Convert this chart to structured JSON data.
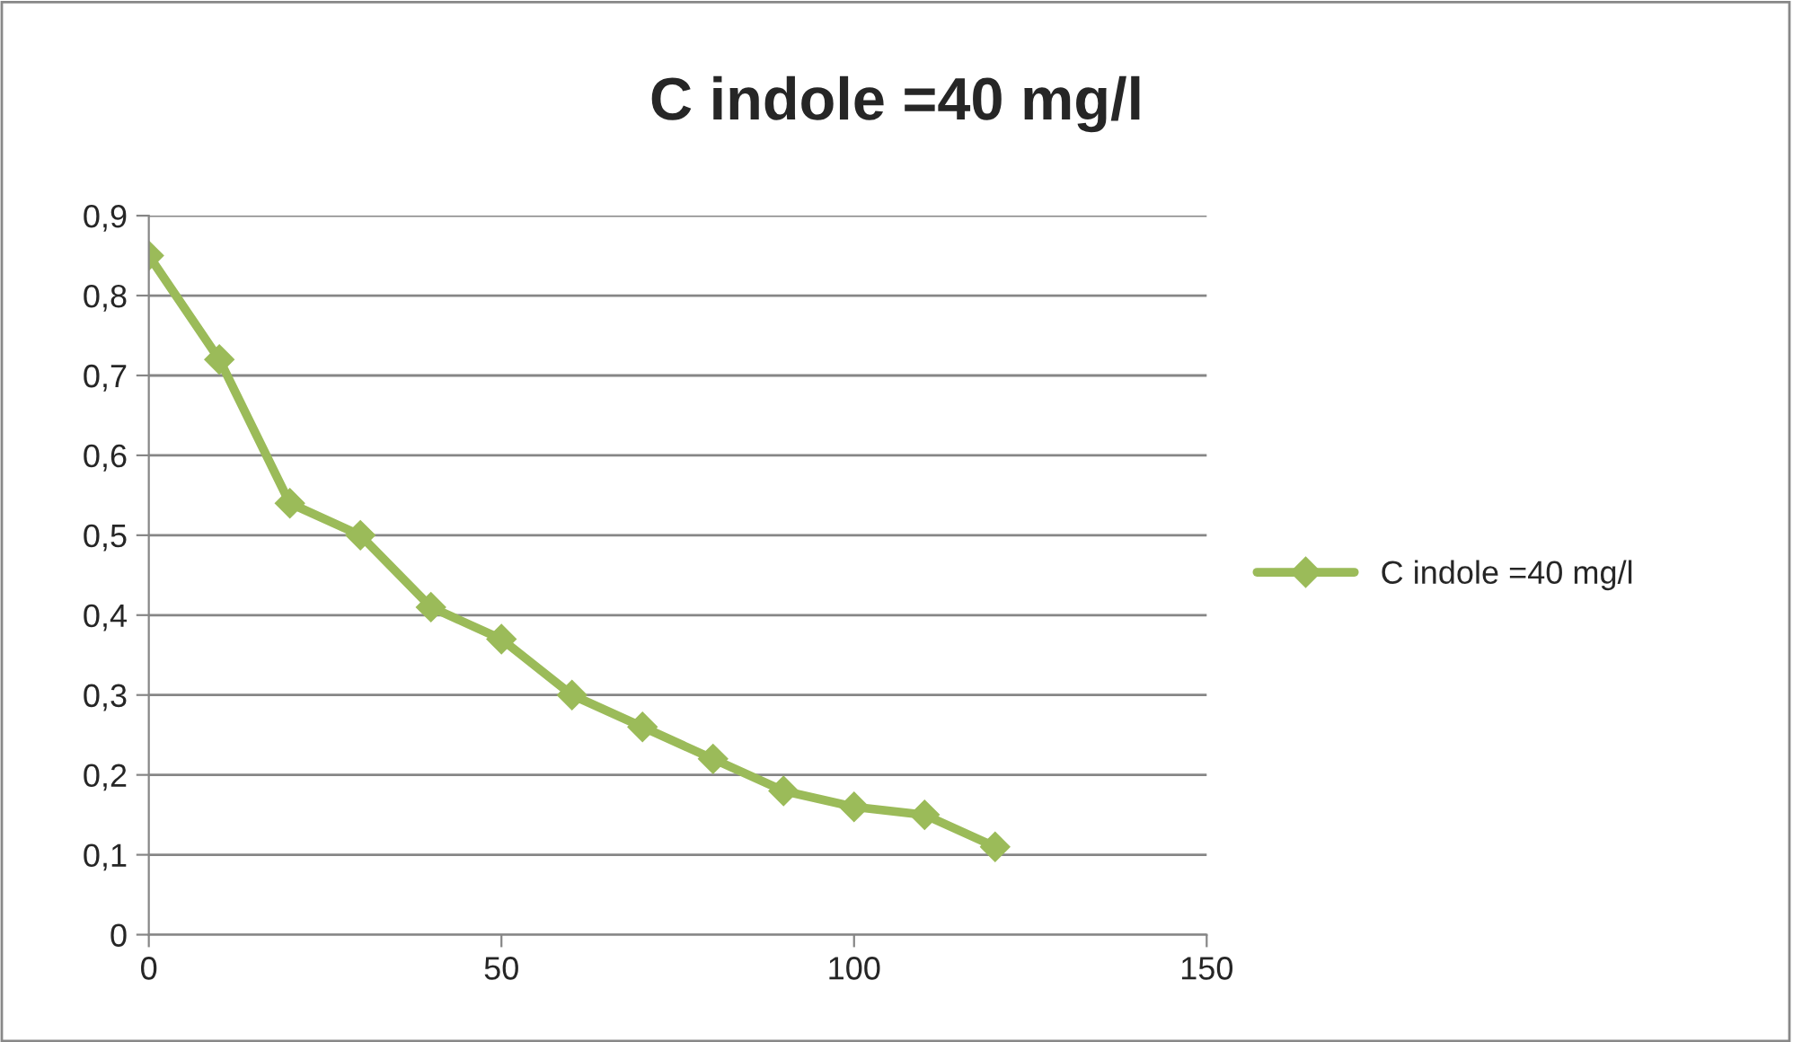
{
  "chart_data": {
    "type": "line",
    "title": "C indole =40 mg/l",
    "x": [
      0,
      10,
      20,
      30,
      40,
      50,
      60,
      70,
      80,
      90,
      100,
      110,
      120
    ],
    "series": [
      {
        "name": "C indole =40 mg/l",
        "color": "#9bbb59",
        "values": [
          0.85,
          0.72,
          0.54,
          0.5,
          0.41,
          0.37,
          0.3,
          0.26,
          0.22,
          0.18,
          0.16,
          0.15,
          0.11
        ]
      }
    ],
    "xlim": [
      0,
      150
    ],
    "xticks": [
      0,
      50,
      100,
      150
    ],
    "ylim": [
      0,
      0.9
    ],
    "yticks": [
      {
        "value": 0,
        "label": "0"
      },
      {
        "value": 0.1,
        "label": "0,1"
      },
      {
        "value": 0.2,
        "label": "0,2"
      },
      {
        "value": 0.3,
        "label": "0,3"
      },
      {
        "value": 0.4,
        "label": "0,4"
      },
      {
        "value": 0.5,
        "label": "0,5"
      },
      {
        "value": 0.6,
        "label": "0,6"
      },
      {
        "value": 0.7,
        "label": "0,7"
      },
      {
        "value": 0.8,
        "label": "0,8"
      },
      {
        "value": 0.9,
        "label": "0,9"
      }
    ],
    "grid": "y",
    "legend": "right",
    "marker": "diamond",
    "line_style": "solid"
  }
}
